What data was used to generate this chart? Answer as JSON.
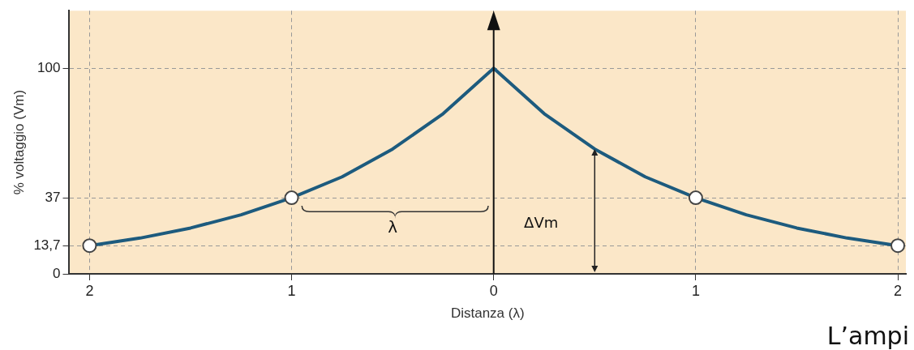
{
  "chart_data": {
    "type": "line",
    "xlabel": "Distanza (λ)",
    "ylabel": "% voltaggio (Vm)",
    "xlim": [
      -2.1,
      2.04
    ],
    "ylim": [
      0,
      128
    ],
    "xticks": [
      {
        "value": -2,
        "label": "2"
      },
      {
        "value": -1,
        "label": "1"
      },
      0,
      1,
      2
    ],
    "yticks": [
      0,
      {
        "value": 13.7,
        "label": "13,7"
      },
      37,
      100
    ],
    "grid": true,
    "legend": false,
    "series": [
      {
        "color": "#1d5b7e",
        "marker": "none",
        "x": [
          -2,
          -1.75,
          -1.5,
          -1.25,
          -1,
          -0.75,
          -0.5,
          -0.25,
          0,
          0.25,
          0.5,
          0.75,
          1,
          1.25,
          1.5,
          1.75,
          2
        ],
        "values": [
          13.7,
          17.4,
          22.3,
          28.7,
          37,
          47.2,
          60.7,
          77.9,
          100,
          77.9,
          60.7,
          47.2,
          37,
          28.7,
          22.3,
          17.4,
          13.7
        ]
      },
      {
        "type": "scatter",
        "color": "#444444",
        "marker": "circle",
        "x": [
          -2,
          -1,
          1,
          2
        ],
        "values": [
          13.7,
          37,
          37,
          13.7
        ]
      }
    ],
    "ref_lines": [
      {
        "axis": "x",
        "value": 0,
        "color": "#111111",
        "line_style": "solid"
      }
    ],
    "annotations": [
      "λ",
      "ΔVm",
      "L’ampi"
    ]
  }
}
